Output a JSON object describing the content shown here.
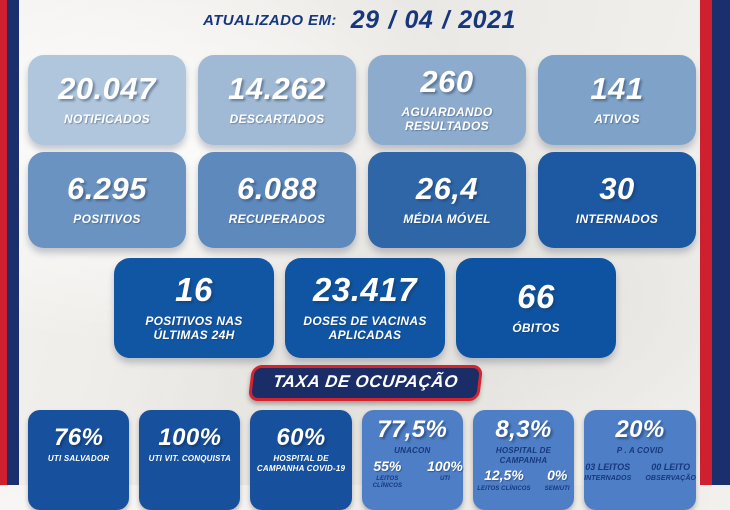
{
  "colors": {
    "stripe_red": "#cf2030",
    "stripe_navy": "#1b2f6e",
    "navy_text": "#17377d",
    "banner_bg": "#1a2d66",
    "banner_border": "#d6232e",
    "row1": [
      "#b0c6dc",
      "#a0bad5",
      "#8dabcc",
      "#7ea2c8"
    ],
    "row2": [
      "#6b93c1",
      "#5d89bc",
      "#2e66a8",
      "#1d58a2"
    ],
    "row3": [
      "#1156a3",
      "#0f55a3",
      "#0e53a1"
    ],
    "occupancy_dark": "#17519d",
    "occupancy_light": "#4e7fc6"
  },
  "header": {
    "label": "ATUALIZADO EM:",
    "day": "29",
    "month": "04",
    "year": "2021",
    "separator": "/"
  },
  "rows": {
    "row1": [
      {
        "value": "20.047",
        "label": "NOTIFICADOS"
      },
      {
        "value": "14.262",
        "label": "DESCARTADOS"
      },
      {
        "value": "260",
        "label": "AGUARDANDO RESULTADOS"
      },
      {
        "value": "141",
        "label": "ATIVOS"
      }
    ],
    "row2": [
      {
        "value": "6.295",
        "label": "POSITIVOS"
      },
      {
        "value": "6.088",
        "label": "RECUPERADOS"
      },
      {
        "value": "26,4",
        "label": "MÉDIA MÓVEL"
      },
      {
        "value": "30",
        "label": "INTERNADOS"
      }
    ],
    "row3": [
      {
        "value": "16",
        "label": "POSITIVOS NAS ÚLTIMAS 24H"
      },
      {
        "value": "23.417",
        "label": "DOSES DE VACINAS APLICADAS"
      },
      {
        "value": "66",
        "label": "ÓBITOS"
      }
    ]
  },
  "banner": {
    "title": "TAXA DE OCUPAÇÃO"
  },
  "occupancy": [
    {
      "value": "76%",
      "label": "UTI SALVADOR"
    },
    {
      "value": "100%",
      "label": "UTI VIT. CONQUISTA"
    },
    {
      "value": "60%",
      "label": "HOSPITAL DE CAMPANHA COVID-19"
    },
    {
      "value": "77,5%",
      "label": "UNACON",
      "sub1_value": "55%",
      "sub1_label": "LEITOS CLÍNICOS",
      "sub2_value": "100%",
      "sub2_label": "UTI"
    },
    {
      "value": "8,3%",
      "label": "HOSPITAL DE CAMPANHA",
      "sub1_value": "12,5%",
      "sub1_label": "LEITOS CLÍNICOS",
      "sub2_value": "0%",
      "sub2_label": "SEM/UTI"
    },
    {
      "value": "20%",
      "label": "P . A COVID",
      "sub1_value": "03 LEITOS",
      "sub1_label": "INTERNADOS",
      "sub2_value": "00 LEITO",
      "sub2_label": "OBSERVAÇÃO"
    }
  ],
  "chart_data": {
    "type": "table",
    "title": "Boletim COVID-19 — ATUALIZADO EM 29/04/2021",
    "metrics": [
      {
        "label": "NOTIFICADOS",
        "value": 20047
      },
      {
        "label": "DESCARTADOS",
        "value": 14262
      },
      {
        "label": "AGUARDANDO RESULTADOS",
        "value": 260
      },
      {
        "label": "ATIVOS",
        "value": 141
      },
      {
        "label": "POSITIVOS",
        "value": 6295
      },
      {
        "label": "RECUPERADOS",
        "value": 6088
      },
      {
        "label": "MÉDIA MÓVEL",
        "value": 26.4
      },
      {
        "label": "INTERNADOS",
        "value": 30
      },
      {
        "label": "POSITIVOS NAS ÚLTIMAS 24H",
        "value": 16
      },
      {
        "label": "DOSES DE VACINAS APLICADAS",
        "value": 23417
      },
      {
        "label": "ÓBITOS",
        "value": 66
      }
    ],
    "taxa_de_ocupacao": [
      {
        "label": "UTI SALVADOR",
        "value_pct": 76
      },
      {
        "label": "UTI VIT. CONQUISTA",
        "value_pct": 100
      },
      {
        "label": "HOSPITAL DE CAMPANHA COVID-19",
        "value_pct": 60
      },
      {
        "label": "UNACON",
        "value_pct": 77.5,
        "leitos_clinicos_pct": 55,
        "uti_pct": 100
      },
      {
        "label": "HOSPITAL DE CAMPANHA",
        "value_pct": 8.3,
        "leitos_clinicos_pct": 12.5,
        "sem_uti_pct": 0
      },
      {
        "label": "P . A COVID",
        "value_pct": 20,
        "leitos_internados": "03 LEITOS",
        "leito_observacao": "00 LEITO"
      }
    ]
  }
}
